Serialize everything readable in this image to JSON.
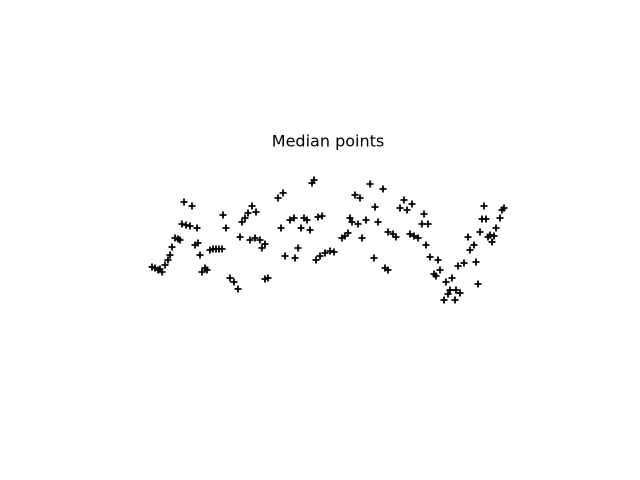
{
  "chart_data": {
    "type": "scatter",
    "title": "Median points",
    "color": "#000000",
    "marker": "plus",
    "xlim": [
      0,
      496
    ],
    "ylim": [
      0,
      181
    ],
    "x": [
      72,
      75,
      78,
      82,
      80,
      85,
      88,
      90,
      92,
      95,
      98,
      100,
      102,
      106,
      110,
      104,
      112,
      117,
      115,
      118,
      120,
      125,
      122,
      127,
      130,
      133,
      136,
      139,
      142,
      143,
      146,
      150,
      154,
      158,
      160,
      162,
      165,
      168,
      172,
      176,
      170,
      175,
      180,
      182,
      185,
      185,
      188,
      198,
      203,
      201,
      205,
      210,
      214,
      218,
      221,
      215,
      224,
      227,
      230,
      232,
      234,
      236,
      238,
      242,
      240,
      245,
      250,
      254,
      262,
      265,
      268,
      270,
      272,
      275,
      280,
      278,
      282,
      286,
      290,
      294,
      295,
      298,
      303,
      305,
      308,
      308,
      313,
      316,
      320,
      324,
      327,
      332,
      330,
      334,
      338,
      342,
      344,
      348,
      346,
      350,
      354,
      356,
      358,
      360,
      364,
      366,
      368,
      370,
      372,
      375,
      376,
      380,
      378,
      384,
      388,
      390,
      394,
      396,
      398,
      400,
      402,
      404,
      406,
      408,
      410,
      412,
      414,
      416,
      420,
      422,
      424
    ],
    "y": [
      66,
      65,
      63,
      61,
      64,
      68,
      73,
      78,
      86,
      95,
      94,
      93,
      109,
      108,
      107,
      131,
      127,
      105,
      88,
      90,
      78,
      65,
      61,
      63,
      83,
      84,
      84,
      84,
      84,
      118,
      105,
      55,
      51,
      44,
      96,
      111,
      115,
      120,
      127,
      121,
      93,
      95,
      93,
      85,
      89,
      54,
      55,
      135,
      140,
      105,
      77,
      113,
      115,
      85,
      105,
      75,
      115,
      113,
      103,
      150,
      153,
      73,
      116,
      117,
      77,
      80,
      82,
      81,
      95,
      97,
      100,
      115,
      111,
      138,
      135,
      109,
      95,
      113,
      149,
      75,
      126,
      111,
      144,
      65,
      63,
      101,
      99,
      96,
      125,
      133,
      123,
      129,
      99,
      97,
      95,
      109,
      119,
      109,
      88,
      76,
      59,
      57,
      73,
      63,
      33,
      51,
      39,
      43,
      55,
      33,
      43,
      40,
      67,
      70,
      96,
      83,
      88,
      71,
      49,
      101,
      114,
      127,
      114,
      96,
      98,
      91,
      97,
      105,
      115,
      123,
      125
    ]
  }
}
